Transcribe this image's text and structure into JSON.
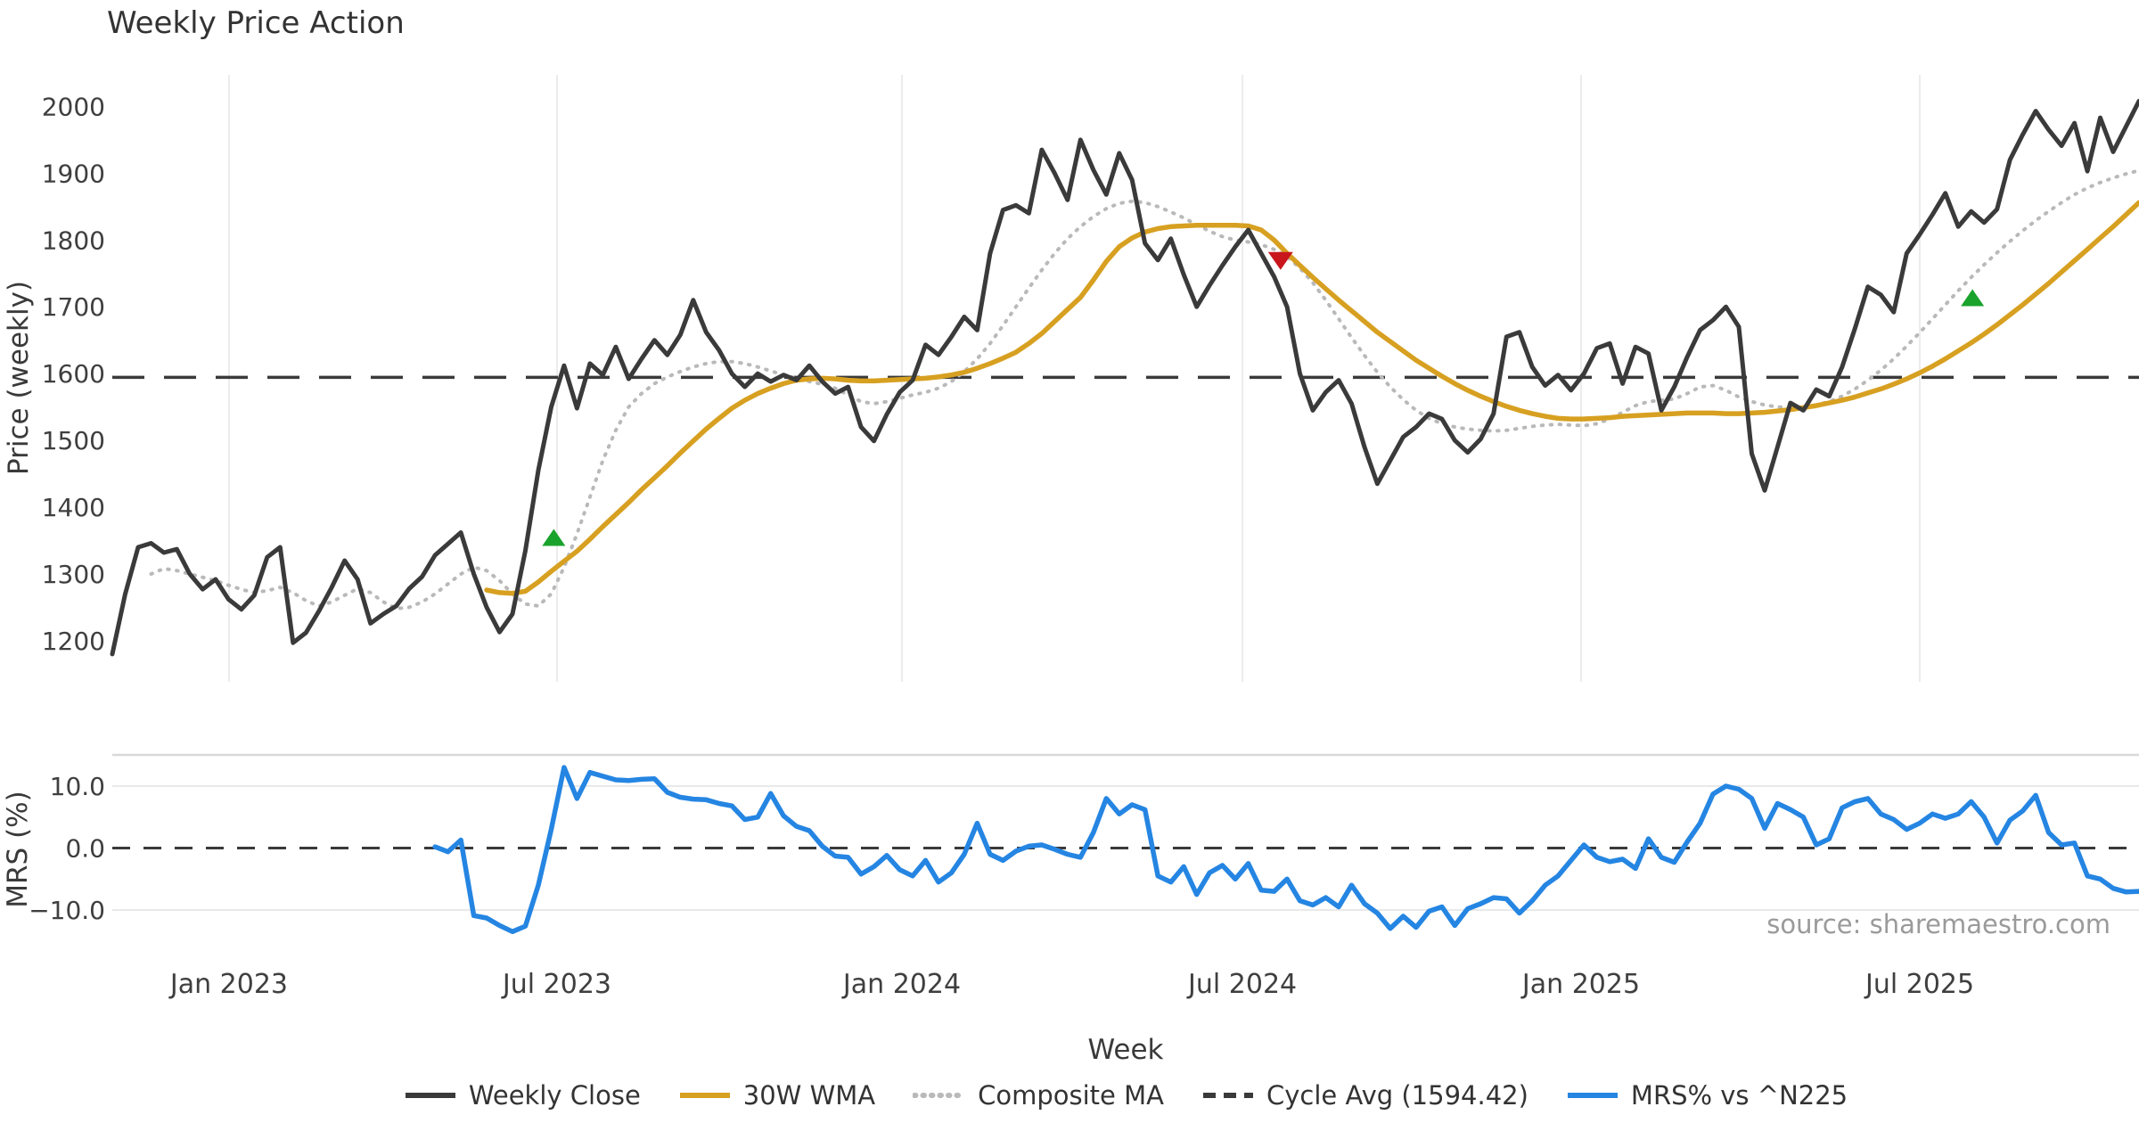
{
  "title": "Weekly Price Action",
  "source": "source: sharemaestro.com",
  "axes": {
    "price_label": "Price (weekly)",
    "mrs_label": "MRS (%)",
    "x_label": "Week",
    "price_ticks": [
      2000,
      1900,
      1800,
      1700,
      1600,
      1500,
      1400,
      1300,
      1200
    ],
    "mrs_ticks": [
      {
        "label": "10.0",
        "value": 10
      },
      {
        "label": "0.0",
        "value": 0
      },
      {
        "label": "−10.0",
        "value": -10
      }
    ],
    "x_ticks": [
      {
        "label": "Jan 2023",
        "week": 9.04
      },
      {
        "label": "Jul 2023",
        "week": 34.45
      },
      {
        "label": "Jan 2024",
        "week": 61.17
      },
      {
        "label": "Jul 2024",
        "week": 87.55
      },
      {
        "label": "Jan 2025",
        "week": 113.78
      },
      {
        "label": "Jul 2025",
        "week": 140.02
      }
    ]
  },
  "legend": [
    {
      "label": "Weekly Close",
      "color": "#3a3a3a",
      "style": "solid"
    },
    {
      "label": "30W WMA",
      "color": "#d7a021",
      "style": "solid"
    },
    {
      "label": "Composite MA",
      "color": "#b9b9b9",
      "style": "dotted"
    },
    {
      "label": "Cycle Avg (1594.42)",
      "color": "#3a3a3a",
      "style": "dashed"
    },
    {
      "label": "MRS% vs ^N225",
      "color": "#2585e2",
      "style": "solid"
    }
  ],
  "colors": {
    "close": "#3a3a3a",
    "wma": "#d7a021",
    "composite": "#b9b9b9",
    "cycle": "#3a3a3a",
    "mrs": "#2585e2",
    "buy_marker": "#1aa32c",
    "sell_marker": "#c9161d",
    "grid": "#ececec",
    "mrs_grid": "#e9e9e9",
    "panel_border": "#d8d8d8"
  },
  "chart_data": {
    "type": "line",
    "x_unit": "week_index",
    "n_weeks": 158,
    "price_ylim": [
      1150,
      2050
    ],
    "mrs_ylim": [
      -15,
      15
    ],
    "cycle_avg": 1594.42,
    "legend_position": "bottom-center",
    "grid": "vertical-only-price-panel",
    "series": [
      {
        "name": "Weekly Close",
        "start_week": 0,
        "values": [
          1180,
          1270,
          1340,
          1346,
          1332,
          1337,
          1300,
          1277,
          1292,
          1262,
          1247,
          1268,
          1325,
          1340,
          1197,
          1212,
          1244,
          1280,
          1320,
          1292,
          1226,
          1240,
          1252,
          1278,
          1296,
          1328,
          1345,
          1362,
          1300,
          1250,
          1213,
          1240,
          1335,
          1455,
          1550,
          1612,
          1548,
          1615,
          1598,
          1640,
          1592,
          1622,
          1650,
          1628,
          1658,
          1710,
          1662,
          1635,
          1600,
          1580,
          1600,
          1588,
          1598,
          1590,
          1612,
          1588,
          1570,
          1580,
          1520,
          1499,
          1539,
          1572,
          1590,
          1643,
          1628,
          1655,
          1685,
          1665,
          1780,
          1845,
          1852,
          1840,
          1935,
          1900,
          1860,
          1950,
          1905,
          1868,
          1930,
          1890,
          1795,
          1770,
          1802,
          1748,
          1700,
          1732,
          1762,
          1790,
          1815,
          1780,
          1745,
          1700,
          1600,
          1545,
          1572,
          1590,
          1555,
          1490,
          1435,
          1470,
          1505,
          1520,
          1540,
          1532,
          1500,
          1482,
          1502,
          1540,
          1655,
          1662,
          1610,
          1582,
          1598,
          1575,
          1600,
          1638,
          1645,
          1585,
          1640,
          1630,
          1545,
          1580,
          1625,
          1665,
          1680,
          1700,
          1670,
          1480,
          1425,
          1490,
          1556,
          1545,
          1576,
          1566,
          1610,
          1668,
          1730,
          1718,
          1692,
          1780,
          1808,
          1838,
          1870,
          1820,
          1843,
          1826,
          1846,
          1920,
          1958,
          1993,
          1965,
          1941,
          1975,
          1903,
          1983,
          1932,
          1970,
          2008
        ]
      },
      {
        "name": "30W WMA",
        "start_week": 29,
        "values": [
          1276,
          1272,
          1271,
          1274,
          1288,
          1304,
          1319,
          1334,
          1352,
          1371,
          1389,
          1407,
          1426,
          1444,
          1462,
          1481,
          1499,
          1517,
          1533,
          1548,
          1560,
          1570,
          1578,
          1585,
          1590,
          1592,
          1593,
          1592,
          1590,
          1589,
          1589,
          1590,
          1591,
          1592,
          1593,
          1595,
          1598,
          1602,
          1608,
          1615,
          1623,
          1632,
          1645,
          1660,
          1678,
          1696,
          1714,
          1740,
          1768,
          1790,
          1803,
          1812,
          1817,
          1820,
          1821,
          1822,
          1822,
          1822,
          1822,
          1821,
          1815,
          1800,
          1780,
          1762,
          1744,
          1727,
          1710,
          1694,
          1678,
          1662,
          1648,
          1634,
          1620,
          1608,
          1596,
          1585,
          1575,
          1566,
          1558,
          1551,
          1545,
          1540,
          1536,
          1533,
          1532,
          1532,
          1533,
          1534,
          1536,
          1537,
          1538,
          1539,
          1540,
          1541,
          1541,
          1541,
          1540,
          1540,
          1541,
          1542,
          1544,
          1546,
          1549,
          1552,
          1556,
          1560,
          1565,
          1571,
          1577,
          1584,
          1592,
          1601,
          1611,
          1622,
          1634,
          1646,
          1659,
          1673,
          1688,
          1703,
          1719,
          1735,
          1752,
          1769,
          1786,
          1803,
          1820,
          1838,
          1856
        ]
      },
      {
        "name": "Composite MA",
        "start_week": 3,
        "values": [
          1300,
          1308,
          1305,
          1300,
          1295,
          1290,
          1283,
          1277,
          1272,
          1275,
          1280,
          1272,
          1260,
          1252,
          1258,
          1268,
          1278,
          1272,
          1258,
          1248,
          1250,
          1258,
          1270,
          1285,
          1300,
          1310,
          1305,
          1290,
          1270,
          1255,
          1252,
          1270,
          1310,
          1360,
          1415,
          1470,
          1515,
          1550,
          1570,
          1585,
          1595,
          1603,
          1610,
          1615,
          1618,
          1618,
          1615,
          1610,
          1604,
          1598,
          1593,
          1588,
          1584,
          1578,
          1568,
          1558,
          1555,
          1558,
          1563,
          1568,
          1572,
          1578,
          1588,
          1603,
          1622,
          1645,
          1672,
          1700,
          1728,
          1755,
          1780,
          1802,
          1820,
          1835,
          1847,
          1855,
          1858,
          1856,
          1850,
          1842,
          1833,
          1823,
          1813,
          1805,
          1800,
          1797,
          1793,
          1786,
          1775,
          1758,
          1736,
          1710,
          1682,
          1654,
          1627,
          1602,
          1580,
          1561,
          1545,
          1533,
          1525,
          1520,
          1517,
          1515,
          1514,
          1515,
          1518,
          1521,
          1523,
          1524,
          1523,
          1522,
          1525,
          1532,
          1542,
          1552,
          1558,
          1560,
          1562,
          1570,
          1580,
          1582,
          1575,
          1565,
          1558,
          1553,
          1550,
          1549,
          1550,
          1553,
          1558,
          1566,
          1577,
          1590,
          1605,
          1622,
          1641,
          1661,
          1682,
          1703,
          1724,
          1744,
          1763,
          1781,
          1798,
          1814,
          1829,
          1843,
          1856,
          1868,
          1878,
          1886,
          1893,
          1899,
          1904
        ]
      },
      {
        "name": "MRS% vs ^N225",
        "start_week": 25,
        "values": [
          0.2,
          -0.6,
          1.3,
          -10.9,
          -11.3,
          -12.5,
          -13.5,
          -12.6,
          -6.0,
          3.0,
          13.0,
          8.0,
          12.2,
          11.6,
          11.0,
          10.9,
          11.1,
          11.2,
          9.0,
          8.2,
          7.9,
          7.8,
          7.2,
          6.8,
          4.6,
          5.0,
          8.8,
          5.2,
          3.5,
          2.8,
          0.3,
          -1.3,
          -1.5,
          -4.2,
          -3.0,
          -1.2,
          -3.5,
          -4.5,
          -2.0,
          -5.5,
          -4.0,
          -1.0,
          4.0,
          -1.0,
          -2.0,
          -0.5,
          0.3,
          0.5,
          -0.2,
          -1.0,
          -1.5,
          2.5,
          8.0,
          5.5,
          7.0,
          6.2,
          -4.5,
          -5.5,
          -3.0,
          -7.5,
          -4.0,
          -2.8,
          -5.0,
          -2.5,
          -6.8,
          -7.0,
          -5.0,
          -8.5,
          -9.2,
          -8.0,
          -9.5,
          -6.0,
          -9.0,
          -10.5,
          -13.0,
          -11.0,
          -12.8,
          -10.2,
          -9.5,
          -12.5,
          -9.8,
          -9.0,
          -8.0,
          -8.2,
          -10.5,
          -8.5,
          -6.0,
          -4.5,
          -2.0,
          0.5,
          -1.5,
          -2.2,
          -1.8,
          -3.3,
          1.5,
          -1.5,
          -2.3,
          1.0,
          4.0,
          8.7,
          10.0,
          9.5,
          8.0,
          3.2,
          7.2,
          6.2,
          5.0,
          0.5,
          1.5,
          6.5,
          7.5,
          8.0,
          5.5,
          4.6,
          3.0,
          4.0,
          5.5,
          4.8,
          5.5,
          7.5,
          5.0,
          0.8,
          4.5,
          6.0,
          8.5,
          2.5,
          0.5,
          0.8,
          -4.5,
          -5.0,
          -6.5,
          -7.1,
          -7.0
        ]
      }
    ],
    "markers": {
      "buy": [
        {
          "week": 34.2,
          "price": 1354
        },
        {
          "week": 144.1,
          "price": 1713
        }
      ],
      "sell": [
        {
          "week": 90.5,
          "price": 1770
        }
      ]
    }
  }
}
